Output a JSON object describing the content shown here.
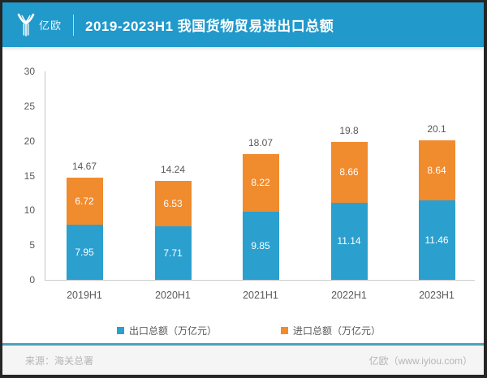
{
  "header": {
    "logo_text": "亿欧",
    "title": "2019-2023H1 我国货物贸易进出口总额"
  },
  "colors": {
    "header_bg": "#2199CB",
    "export_blue": "#2BA0CF",
    "import_orange": "#F08B2E",
    "footer_rule_teal": "#4AA2BC"
  },
  "chart_data": {
    "type": "bar",
    "stacked": true,
    "title": "2019-2023H1 我国货物贸易进出口总额",
    "categories": [
      "2019H1",
      "2020H1",
      "2021H1",
      "2022H1",
      "2023H1"
    ],
    "series": [
      {
        "name": "出口总额（万亿元）",
        "color": "#2BA0CF",
        "values": [
          7.95,
          7.71,
          9.85,
          11.14,
          11.46
        ]
      },
      {
        "name": "进口总额（万亿元）",
        "color": "#F08B2E",
        "values": [
          6.72,
          6.53,
          8.22,
          8.66,
          8.64
        ]
      }
    ],
    "totals": [
      "14.67",
      "14.24",
      "18.07",
      "19.8",
      "20.1"
    ],
    "xlabel": "",
    "ylabel": "",
    "ylim": [
      0,
      30
    ],
    "yticks": [
      0,
      5,
      10,
      15,
      20,
      25,
      30
    ],
    "grid": false,
    "legend_position": "bottom"
  },
  "footer": {
    "source": "来源：海关总署",
    "credit": "亿欧（www.iyiou.com）"
  }
}
